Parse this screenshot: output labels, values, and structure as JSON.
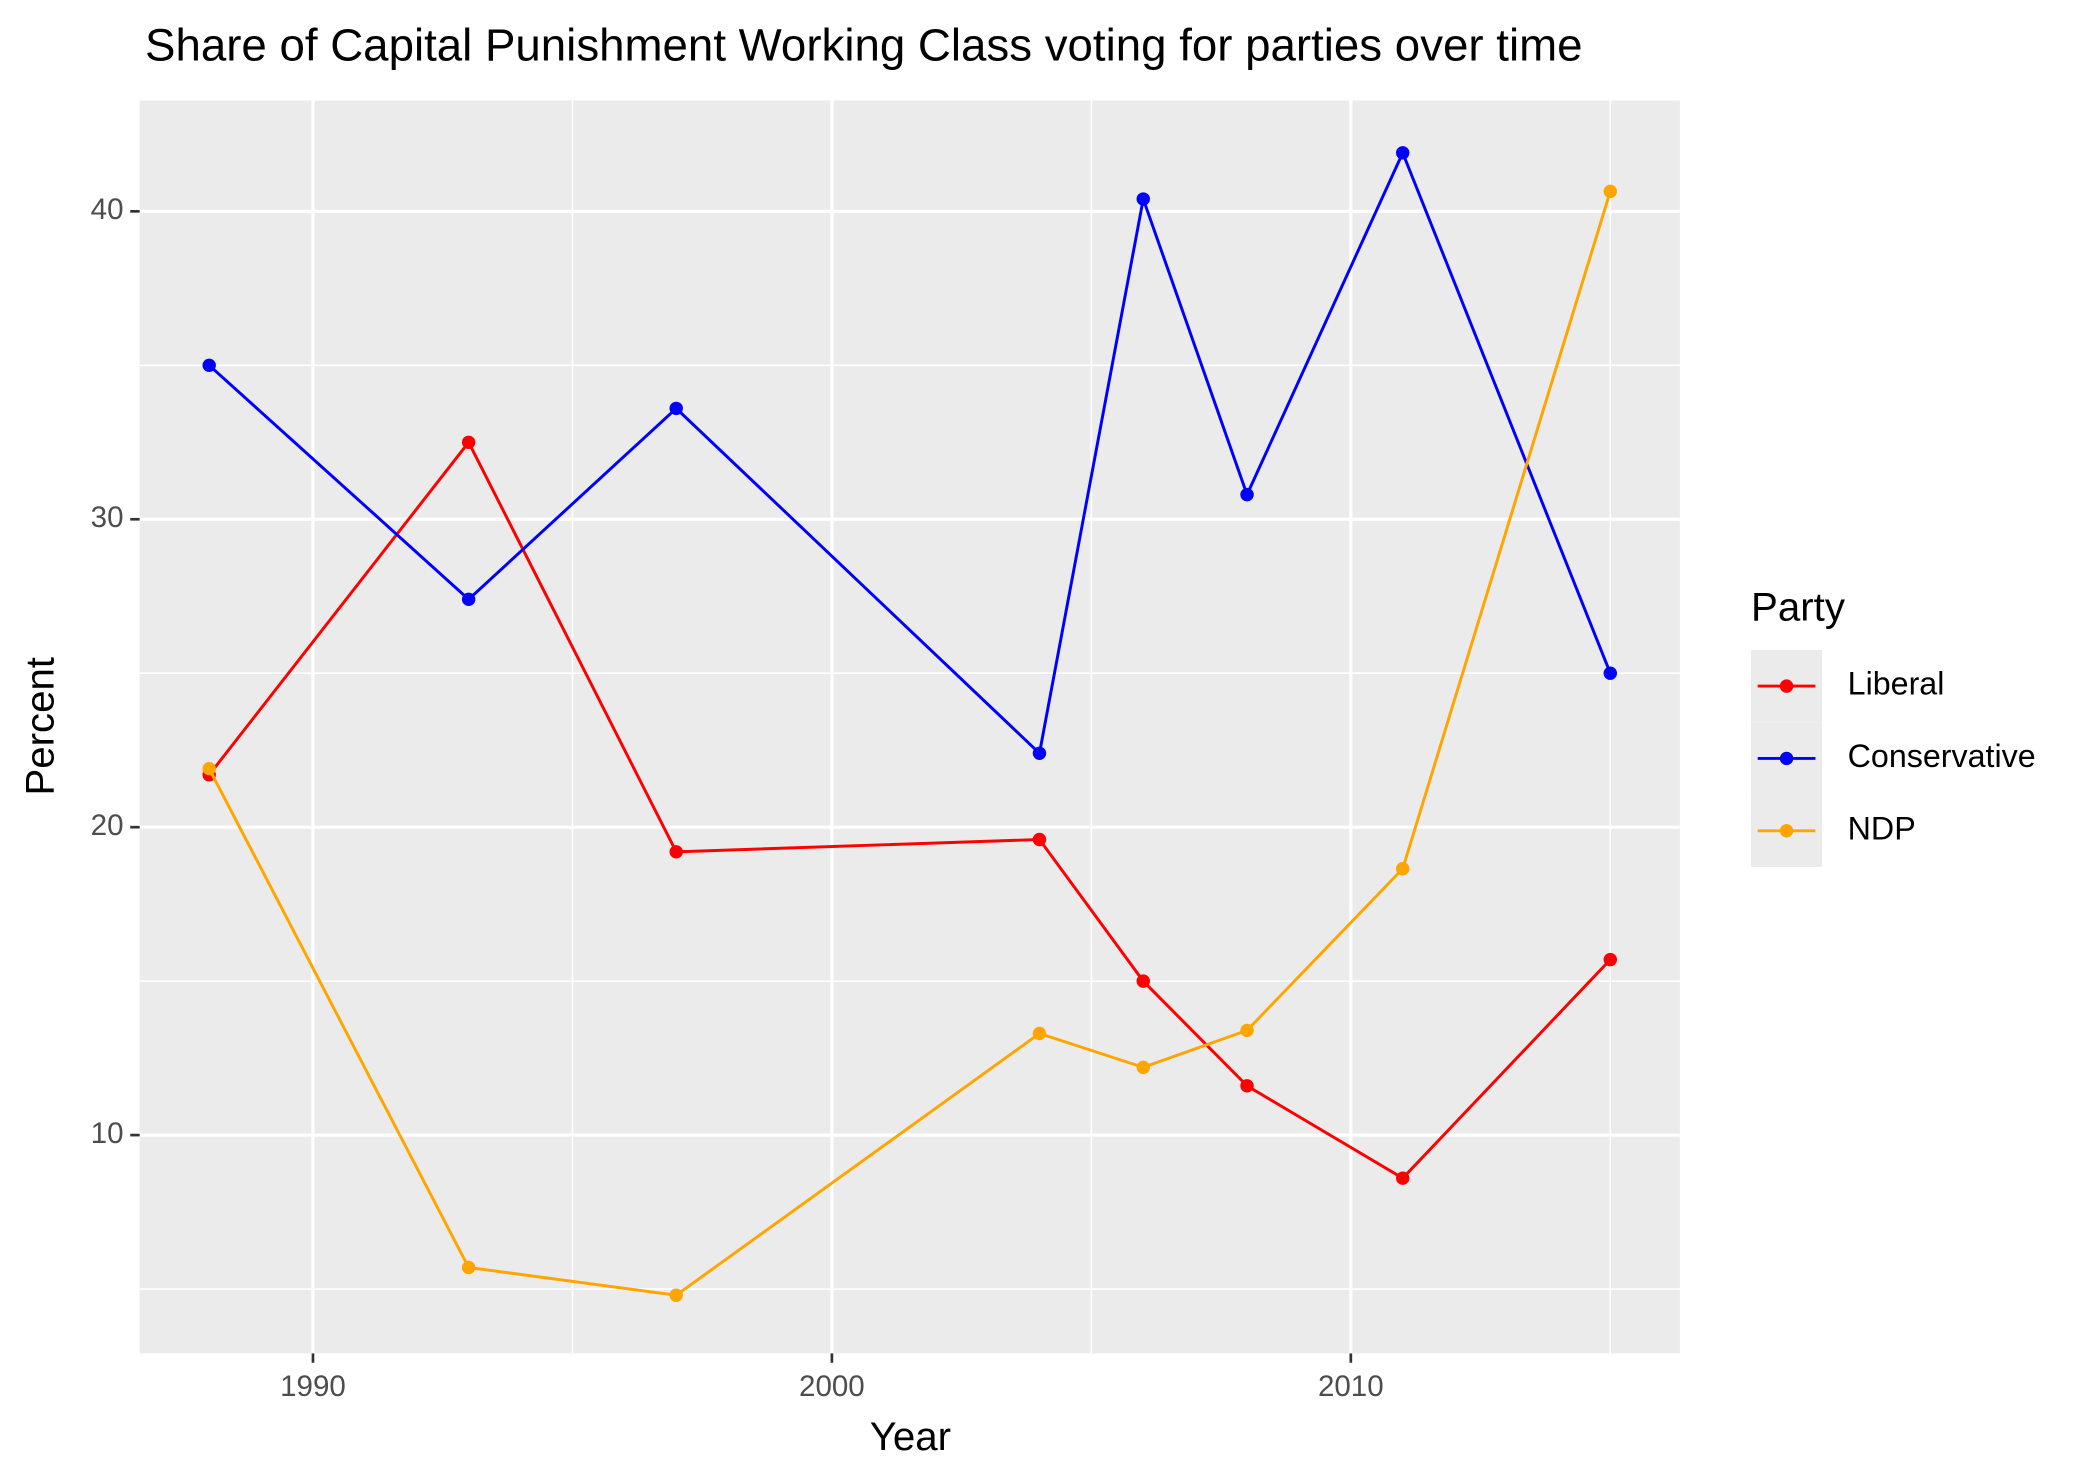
{
  "chart_data": {
    "type": "line",
    "title": "Share of Capital Punishment Working Class voting for parties over time",
    "x_label": "Year",
    "y_label": "Percent",
    "x": [
      1988,
      1993,
      1997,
      2004,
      2006,
      2008,
      2011,
      2015
    ],
    "series": [
      {
        "name": "Liberal",
        "color": "#ff0000",
        "values": [
          21.7,
          32.5,
          19.2,
          19.6,
          15.0,
          11.6,
          8.6,
          15.7
        ]
      },
      {
        "name": "Conservative",
        "color": "#0000ff",
        "values": [
          35.0,
          27.4,
          33.6,
          22.4,
          40.4,
          30.8,
          41.9,
          25.0
        ]
      },
      {
        "name": "NDP",
        "color": "#ffa500",
        "values": [
          21.9,
          5.7,
          4.8,
          13.3,
          12.2,
          13.4,
          18.65,
          40.65
        ]
      }
    ],
    "legend_title": "Party",
    "legend": "right",
    "grid": true,
    "xlim": [
      1986.66,
      2016.34
    ],
    "ylim": [
      2.91,
      43.6
    ],
    "xticks": [
      1990,
      2000,
      2010
    ],
    "yticks": [
      10,
      20,
      30,
      40
    ],
    "x_minor_ticks": [
      1995,
      2005,
      2015
    ],
    "y_minor_ticks": [
      5,
      15,
      25,
      35
    ]
  }
}
